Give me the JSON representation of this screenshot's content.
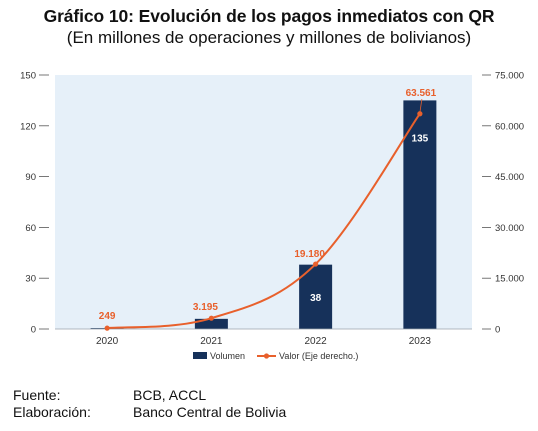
{
  "title": "Gráfico 10: Evolución de los pagos inmediatos con QR",
  "subtitle": "(En millones de operaciones y millones de bolivianos)",
  "colors": {
    "bars": "#16315a",
    "line": "#e8602c",
    "plot_bg": "#e6f0f9"
  },
  "chart_data": {
    "type": "bar",
    "categories": [
      "2020",
      "2021",
      "2022",
      "2023"
    ],
    "series": [
      {
        "name": "Volumen",
        "type": "bar",
        "axis": "left",
        "values": [
          0.5,
          6,
          38,
          135
        ],
        "data_labels": [
          "",
          "",
          "38",
          "135"
        ]
      },
      {
        "name": "Valor (Eje derecho.)",
        "type": "line",
        "axis": "right",
        "values": [
          249,
          3195,
          19180,
          63561
        ],
        "data_labels": [
          "249",
          "3.195",
          "19.180",
          "63.561"
        ]
      }
    ],
    "ylim_left": [
      0,
      150
    ],
    "yticks_left": [
      "0",
      "30",
      "60",
      "90",
      "120",
      "150"
    ],
    "ylim_right": [
      0,
      75000
    ],
    "yticks_right": [
      "0",
      "15.000",
      "30.000",
      "45.000",
      "60.000",
      "75.000"
    ],
    "legend_position": "bottom-center",
    "grid": false
  },
  "footer": [
    {
      "label": "Fuente:",
      "value": "BCB, ACCL"
    },
    {
      "label": "Elaboración:",
      "value": "Banco Central de Bolivia"
    }
  ]
}
